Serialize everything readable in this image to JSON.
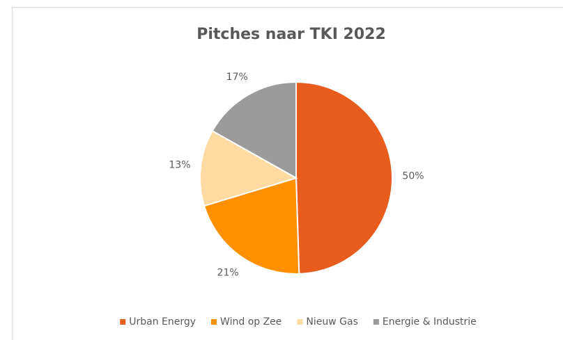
{
  "chart_data": {
    "type": "pie",
    "title": "Pitches naar TKI 2022",
    "categories": [
      "Urban Energy",
      "Wind op Zee",
      "Nieuw Gas",
      "Energie & Industrie"
    ],
    "values": [
      50,
      21,
      13,
      17
    ],
    "value_labels": [
      "50%",
      "21%",
      "13%",
      "17%"
    ],
    "colors": [
      "#e85c1e",
      "#ff9100",
      "#ffdba1",
      "#9b9b9b"
    ],
    "legend": "bottom"
  }
}
